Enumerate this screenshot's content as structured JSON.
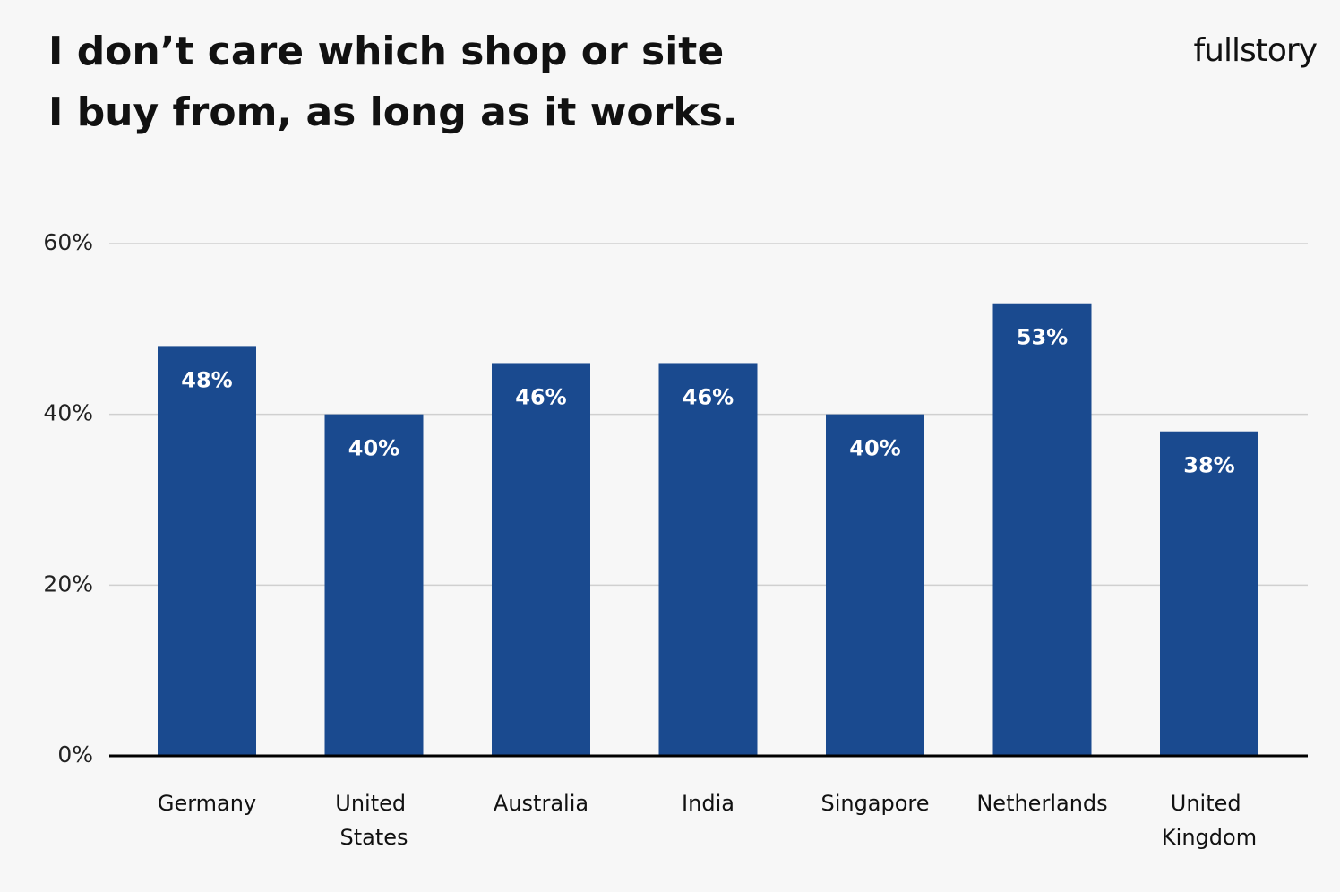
{
  "chart_data": {
    "type": "bar",
    "title": [
      "I don’t care which shop or site",
      "I buy from, as long as it works."
    ],
    "brand": "fullstory",
    "categories": [
      "Germany",
      "United States",
      "Australia",
      "India",
      "Singapore",
      "Netherlands",
      "United Kingdom"
    ],
    "values": [
      48,
      40,
      46,
      46,
      40,
      53,
      38
    ],
    "value_labels": [
      "48%",
      "40%",
      "46%",
      "46%",
      "40%",
      "53%",
      "38%"
    ],
    "color": "#1a4a8f",
    "ylim": [
      0,
      60
    ],
    "yticks": [
      {
        "value": 0,
        "label": "0%"
      },
      {
        "value": 20,
        "label": "20%"
      },
      {
        "value": 40,
        "label": "40%"
      },
      {
        "value": 60,
        "label": "60%"
      }
    ],
    "grid": true
  }
}
